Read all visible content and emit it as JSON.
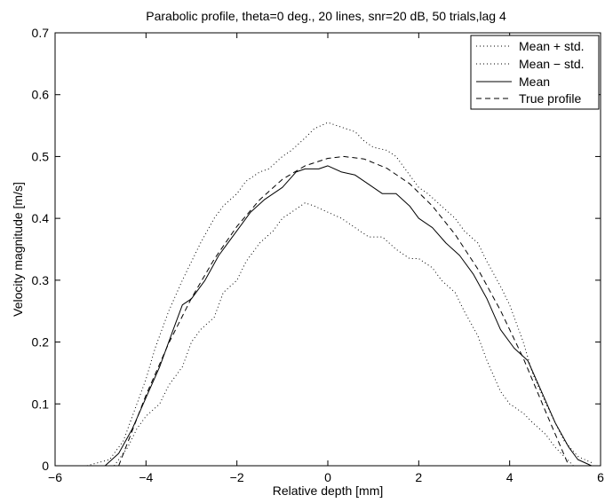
{
  "chart_data": {
    "type": "line",
    "title": "Parabolic profile, theta=0 deg., 20 lines, snr=20 dB, 50 trials,lag 4",
    "xlabel": "Relative depth [mm]",
    "ylabel": "Velocity magnitude [m/s]",
    "xlim": [
      -6,
      6
    ],
    "ylim": [
      0,
      0.7
    ],
    "xticks": [
      -6,
      -4,
      -2,
      0,
      2,
      4,
      6
    ],
    "yticks": [
      0,
      0.1,
      0.2,
      0.3,
      0.4,
      0.5,
      0.6,
      0.7
    ],
    "xtick_labels": [
      "−6",
      "−4",
      "−2",
      "0",
      "2",
      "4",
      "6"
    ],
    "ytick_labels": [
      "0",
      "0.1",
      "0.2",
      "0.3",
      "0.4",
      "0.5",
      "0.6",
      "0.7"
    ],
    "grid": false,
    "legend_position": "top-right",
    "series": [
      {
        "name": "Mean + std.",
        "style": "dotted",
        "color": "#000000",
        "x": [
          -5.3,
          -4.8,
          -4.5,
          -4.2,
          -4.0,
          -3.8,
          -3.5,
          -3.2,
          -3.0,
          -2.8,
          -2.5,
          -2.3,
          -2.0,
          -1.8,
          -1.5,
          -1.3,
          -1.0,
          -0.8,
          -0.5,
          -0.3,
          0.0,
          0.2,
          0.4,
          0.6,
          0.8,
          1.0,
          1.3,
          1.5,
          1.7,
          2.0,
          2.2,
          2.5,
          2.8,
          3.0,
          3.3,
          3.5,
          3.8,
          4.0,
          4.3,
          4.5,
          4.8,
          5.0,
          5.2,
          5.5,
          5.8
        ],
        "y": [
          0.0,
          0.01,
          0.04,
          0.1,
          0.14,
          0.19,
          0.25,
          0.3,
          0.33,
          0.36,
          0.4,
          0.42,
          0.44,
          0.46,
          0.475,
          0.48,
          0.5,
          0.51,
          0.53,
          0.545,
          0.555,
          0.55,
          0.545,
          0.54,
          0.525,
          0.515,
          0.51,
          0.5,
          0.48,
          0.45,
          0.44,
          0.42,
          0.4,
          0.38,
          0.36,
          0.33,
          0.29,
          0.26,
          0.2,
          0.15,
          0.1,
          0.07,
          0.04,
          0.015,
          0.005
        ]
      },
      {
        "name": "Mean − std.",
        "style": "dotted",
        "color": "#000000",
        "x": [
          -4.7,
          -4.4,
          -4.2,
          -4.0,
          -3.7,
          -3.5,
          -3.2,
          -3.0,
          -2.8,
          -2.5,
          -2.3,
          -2.0,
          -1.8,
          -1.5,
          -1.2,
          -1.0,
          -0.8,
          -0.5,
          -0.3,
          0.0,
          0.3,
          0.6,
          0.9,
          1.2,
          1.5,
          1.8,
          2.0,
          2.3,
          2.5,
          2.8,
          3.0,
          3.3,
          3.5,
          3.8,
          4.0,
          4.3,
          4.5,
          4.8,
          5.0,
          5.2,
          5.4
        ],
        "y": [
          0.0,
          0.03,
          0.06,
          0.08,
          0.1,
          0.13,
          0.16,
          0.2,
          0.22,
          0.24,
          0.28,
          0.3,
          0.33,
          0.36,
          0.38,
          0.4,
          0.41,
          0.425,
          0.42,
          0.41,
          0.4,
          0.385,
          0.37,
          0.37,
          0.35,
          0.335,
          0.335,
          0.32,
          0.3,
          0.28,
          0.25,
          0.21,
          0.17,
          0.12,
          0.1,
          0.085,
          0.07,
          0.05,
          0.03,
          0.015,
          0.0
        ]
      },
      {
        "name": "Mean",
        "style": "solid",
        "color": "#000000",
        "x": [
          -4.9,
          -4.6,
          -4.3,
          -4.0,
          -3.7,
          -3.4,
          -3.2,
          -3.0,
          -2.7,
          -2.4,
          -2.0,
          -1.7,
          -1.4,
          -1.0,
          -0.7,
          -0.5,
          -0.2,
          0.0,
          0.3,
          0.6,
          0.9,
          1.2,
          1.5,
          1.8,
          2.0,
          2.3,
          2.6,
          2.9,
          3.2,
          3.5,
          3.8,
          4.1,
          4.4,
          4.7,
          5.0,
          5.3,
          5.5,
          5.8
        ],
        "y": [
          0.0,
          0.02,
          0.06,
          0.11,
          0.16,
          0.22,
          0.26,
          0.27,
          0.3,
          0.34,
          0.38,
          0.41,
          0.43,
          0.45,
          0.475,
          0.48,
          0.48,
          0.485,
          0.475,
          0.47,
          0.455,
          0.44,
          0.44,
          0.42,
          0.4,
          0.385,
          0.36,
          0.34,
          0.31,
          0.27,
          0.22,
          0.19,
          0.17,
          0.12,
          0.07,
          0.03,
          0.01,
          0.0
        ]
      },
      {
        "name": "True profile",
        "style": "dashed",
        "color": "#000000",
        "equation": "y = 0.5 * (1 - ((x - 0.35) / 4.95)^2)",
        "x": [
          -4.6,
          -4.0,
          -3.5,
          -3.0,
          -2.5,
          -2.0,
          -1.5,
          -1.0,
          -0.5,
          0.0,
          0.35,
          0.8,
          1.3,
          1.8,
          2.3,
          2.8,
          3.3,
          3.8,
          4.3,
          4.8,
          5.3
        ],
        "y": [
          0.0,
          0.114,
          0.198,
          0.271,
          0.334,
          0.387,
          0.43,
          0.463,
          0.485,
          0.497,
          0.5,
          0.496,
          0.481,
          0.456,
          0.42,
          0.374,
          0.318,
          0.251,
          0.174,
          0.086,
          0.0
        ]
      }
    ]
  }
}
